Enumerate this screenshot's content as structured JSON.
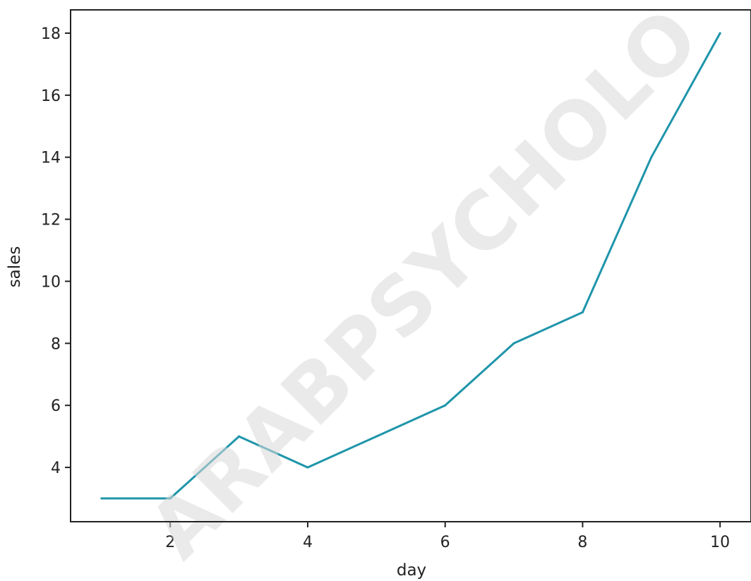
{
  "chart_data": {
    "type": "line",
    "title": "",
    "xlabel": "day",
    "ylabel": "sales",
    "x": [
      1,
      2,
      3,
      4,
      5,
      6,
      7,
      8,
      9,
      10
    ],
    "series": [
      {
        "values": [
          3,
          3,
          5,
          4,
          5,
          6,
          8,
          9,
          14,
          18
        ],
        "color": "#1f95aa"
      }
    ],
    "xlim": [
      0.55,
      10.45
    ],
    "ylim": [
      2.25,
      18.75
    ],
    "xticks": [
      2,
      4,
      6,
      8,
      10
    ],
    "yticks": [
      4,
      6,
      8,
      10,
      12,
      14,
      16,
      18
    ],
    "grid": false,
    "legend": "none"
  },
  "watermark": "ARABPSYCHOLO"
}
